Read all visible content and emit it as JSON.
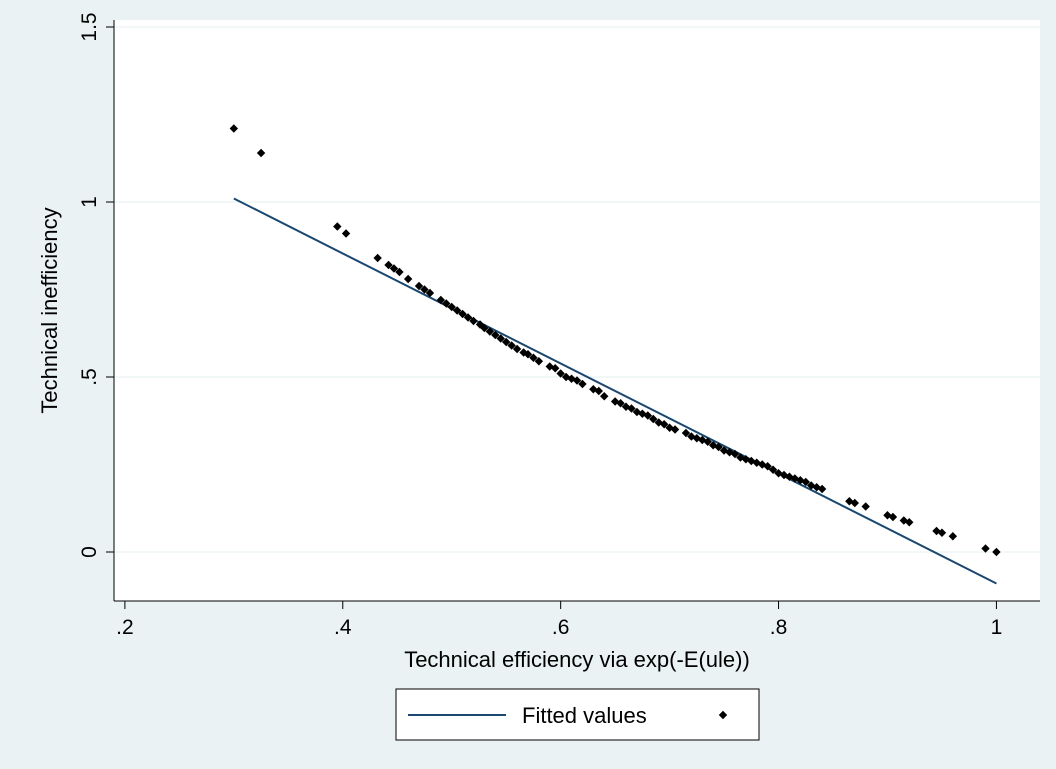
{
  "chart_data": {
    "type": "scatter",
    "xlabel": "Technical efficiency via exp(-E(ule))",
    "ylabel": "Technical inefficiency",
    "xlim": [
      0.19,
      1.04
    ],
    "ylim": [
      -0.14,
      1.52
    ],
    "x_ticks": [
      {
        "value": 0.2,
        "label": ".2"
      },
      {
        "value": 0.4,
        "label": ".4"
      },
      {
        "value": 0.6,
        "label": ".6"
      },
      {
        "value": 0.8,
        "label": ".8"
      },
      {
        "value": 1.0,
        "label": "1"
      }
    ],
    "y_ticks": [
      {
        "value": 0,
        "label": "0"
      },
      {
        "value": 0.5,
        "label": ".5"
      },
      {
        "value": 1.0,
        "label": "1"
      },
      {
        "value": 1.5,
        "label": "1.5"
      }
    ],
    "grid": "horizontal",
    "legend_position": "bottom",
    "colors": {
      "background": "#eaf2f3",
      "plot_background": "#ffffff",
      "line": "#1a476f",
      "marker": "#000000",
      "grid": "#eaf2f3"
    },
    "series": [
      {
        "name": "Fitted values",
        "type": "line",
        "x": [
          0.3,
          1.0
        ],
        "y": [
          1.01,
          -0.09
        ]
      },
      {
        "name": "",
        "type": "scatter",
        "marker": "diamond",
        "x": [
          0.3,
          0.325,
          0.395,
          0.403,
          0.432,
          0.442,
          0.447,
          0.452,
          0.46,
          0.47,
          0.475,
          0.48,
          0.49,
          0.495,
          0.5,
          0.505,
          0.51,
          0.515,
          0.52,
          0.526,
          0.53,
          0.535,
          0.54,
          0.545,
          0.55,
          0.555,
          0.56,
          0.566,
          0.57,
          0.575,
          0.58,
          0.59,
          0.595,
          0.6,
          0.605,
          0.61,
          0.615,
          0.62,
          0.63,
          0.635,
          0.64,
          0.65,
          0.655,
          0.66,
          0.665,
          0.67,
          0.675,
          0.68,
          0.685,
          0.69,
          0.695,
          0.7,
          0.705,
          0.715,
          0.72,
          0.725,
          0.73,
          0.735,
          0.74,
          0.745,
          0.75,
          0.755,
          0.76,
          0.765,
          0.77,
          0.775,
          0.78,
          0.785,
          0.79,
          0.795,
          0.8,
          0.805,
          0.81,
          0.815,
          0.82,
          0.825,
          0.83,
          0.835,
          0.84,
          0.865,
          0.87,
          0.88,
          0.9,
          0.905,
          0.915,
          0.92,
          0.945,
          0.95,
          0.96,
          0.99,
          1.0
        ],
        "y": [
          1.21,
          1.14,
          0.93,
          0.91,
          0.84,
          0.82,
          0.81,
          0.8,
          0.78,
          0.76,
          0.75,
          0.74,
          0.72,
          0.71,
          0.7,
          0.69,
          0.68,
          0.67,
          0.66,
          0.65,
          0.64,
          0.63,
          0.62,
          0.61,
          0.6,
          0.59,
          0.58,
          0.57,
          0.565,
          0.555,
          0.545,
          0.53,
          0.525,
          0.51,
          0.5,
          0.495,
          0.49,
          0.48,
          0.465,
          0.46,
          0.445,
          0.43,
          0.425,
          0.415,
          0.41,
          0.4,
          0.395,
          0.39,
          0.38,
          0.37,
          0.365,
          0.355,
          0.35,
          0.34,
          0.33,
          0.325,
          0.32,
          0.315,
          0.305,
          0.3,
          0.29,
          0.285,
          0.28,
          0.27,
          0.265,
          0.26,
          0.255,
          0.25,
          0.245,
          0.235,
          0.225,
          0.22,
          0.215,
          0.21,
          0.205,
          0.2,
          0.19,
          0.185,
          0.18,
          0.145,
          0.14,
          0.13,
          0.105,
          0.1,
          0.09,
          0.085,
          0.06,
          0.055,
          0.045,
          0.01,
          0.0
        ]
      }
    ]
  }
}
